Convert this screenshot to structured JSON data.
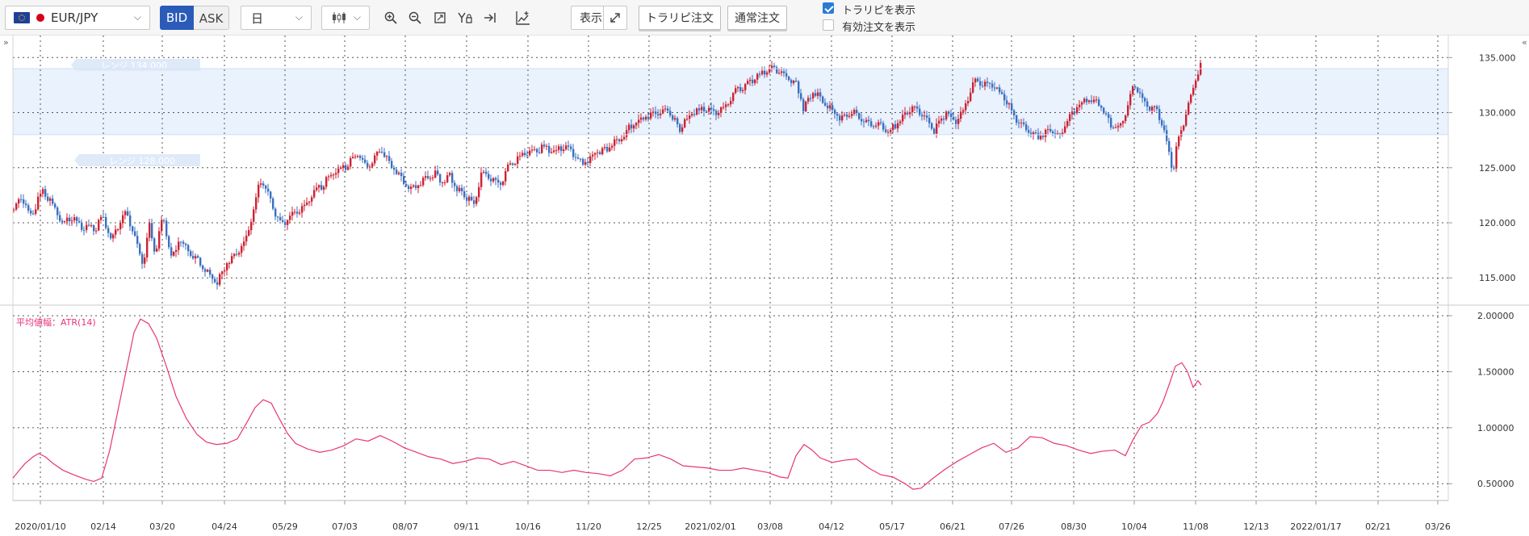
{
  "toolbar": {
    "pair": "EUR/JPY",
    "bid_label": "BID",
    "ask_label": "ASK",
    "timeframe": "日",
    "display_label": "表示",
    "trail_order_label": "トラリピ注文",
    "normal_order_label": "通常注文",
    "show_trail_label": "トラリピを表示",
    "show_trail_checked": true,
    "show_orders_label": "有効注文を表示",
    "show_orders_checked": false
  },
  "colors": {
    "up_candle": "#cc2233",
    "down_candle": "#3a6fc0",
    "range_band": "#e9f2fd",
    "atr_line": "#e8337a",
    "grid": "#555555"
  },
  "range_band": {
    "upper_label": "レンジ 134.000",
    "lower_label": "レンジ 128.000",
    "upper": 134.0,
    "lower": 128.0
  },
  "chart_data": [
    {
      "type": "candlestick",
      "title": "",
      "ylim": [
        112.6,
        137.0
      ],
      "y_ticks": [
        115.0,
        120.0,
        125.0,
        130.0,
        135.0
      ],
      "y_tick_labels": [
        "115.000",
        "120.000",
        "125.000",
        "130.000",
        "135.000"
      ],
      "x_tick_labels": [
        "2020/01/10",
        "02/14",
        "03/20",
        "04/24",
        "05/29",
        "07/03",
        "08/07",
        "09/11",
        "10/16",
        "11/20",
        "12/25",
        "2021/02/01",
        "03/08",
        "04/12",
        "05/17",
        "06/21",
        "07/26",
        "08/30",
        "10/04",
        "11/08",
        "12/13",
        "2022/01/17",
        "02/21",
        "03/26"
      ],
      "close_path": [
        [
          0,
          121.2
        ],
        [
          10,
          122.4
        ],
        [
          20,
          120.5
        ],
        [
          35,
          122.8
        ],
        [
          50,
          121.5
        ],
        [
          60,
          120.0
        ],
        [
          72,
          120.5
        ],
        [
          85,
          119.6
        ],
        [
          100,
          119.4
        ],
        [
          110,
          120.5
        ],
        [
          120,
          118.5
        ],
        [
          130,
          119.8
        ],
        [
          140,
          121.0
        ],
        [
          150,
          118.5
        ],
        [
          160,
          116.3
        ],
        [
          168,
          119.8
        ],
        [
          175,
          117.2
        ],
        [
          185,
          120.6
        ],
        [
          195,
          116.8
        ],
        [
          205,
          118.5
        ],
        [
          215,
          117.5
        ],
        [
          225,
          116.8
        ],
        [
          240,
          115.5
        ],
        [
          252,
          114.5
        ],
        [
          262,
          116.2
        ],
        [
          272,
          117.0
        ],
        [
          285,
          118.0
        ],
        [
          295,
          120.5
        ],
        [
          305,
          124.0
        ],
        [
          315,
          122.5
        ],
        [
          325,
          120.5
        ],
        [
          332,
          119.7
        ],
        [
          345,
          120.8
        ],
        [
          358,
          121.3
        ],
        [
          370,
          122.5
        ],
        [
          383,
          123.5
        ],
        [
          396,
          124.5
        ],
        [
          410,
          125.0
        ],
        [
          425,
          126.3
        ],
        [
          440,
          125.0
        ],
        [
          455,
          126.8
        ],
        [
          465,
          125.5
        ],
        [
          480,
          124.0
        ],
        [
          490,
          123.0
        ],
        [
          500,
          123.5
        ],
        [
          512,
          124.0
        ],
        [
          522,
          124.6
        ],
        [
          532,
          123.6
        ],
        [
          540,
          124.4
        ],
        [
          550,
          123.0
        ],
        [
          560,
          122.3
        ],
        [
          570,
          121.7
        ],
        [
          580,
          124.6
        ],
        [
          590,
          124.0
        ],
        [
          602,
          123.3
        ],
        [
          612,
          125.0
        ],
        [
          625,
          126.0
        ],
        [
          640,
          126.3
        ],
        [
          655,
          126.8
        ],
        [
          670,
          126.5
        ],
        [
          685,
          127.0
        ],
        [
          695,
          126.0
        ],
        [
          705,
          125.3
        ],
        [
          720,
          126.4
        ],
        [
          735,
          126.8
        ],
        [
          750,
          127.6
        ],
        [
          765,
          128.8
        ],
        [
          780,
          129.7
        ],
        [
          795,
          130.0
        ],
        [
          810,
          130.3
        ],
        [
          825,
          128.6
        ],
        [
          840,
          130.0
        ],
        [
          855,
          130.3
        ],
        [
          870,
          130.1
        ],
        [
          880,
          130.5
        ],
        [
          895,
          132.0
        ],
        [
          910,
          132.6
        ],
        [
          925,
          133.4
        ],
        [
          940,
          134.1
        ],
        [
          955,
          133.3
        ],
        [
          970,
          132.6
        ],
        [
          978,
          130.4
        ],
        [
          990,
          132.0
        ],
        [
          1000,
          131.4
        ],
        [
          1012,
          130.3
        ],
        [
          1025,
          129.5
        ],
        [
          1040,
          130.0
        ],
        [
          1055,
          129.2
        ],
        [
          1070,
          128.9
        ],
        [
          1085,
          128.3
        ],
        [
          1100,
          129.5
        ],
        [
          1115,
          130.4
        ],
        [
          1125,
          130.0
        ],
        [
          1140,
          128.3
        ],
        [
          1155,
          130.1
        ],
        [
          1165,
          128.9
        ],
        [
          1175,
          130.0
        ],
        [
          1190,
          132.8
        ],
        [
          1205,
          132.6
        ],
        [
          1215,
          132.2
        ],
        [
          1230,
          131.0
        ],
        [
          1240,
          129.5
        ],
        [
          1255,
          128.5
        ],
        [
          1270,
          127.8
        ],
        [
          1285,
          128.6
        ],
        [
          1295,
          127.8
        ],
        [
          1308,
          129.8
        ],
        [
          1320,
          130.8
        ],
        [
          1332,
          131.2
        ],
        [
          1345,
          130.9
        ],
        [
          1358,
          128.9
        ],
        [
          1370,
          128.6
        ],
        [
          1380,
          130.7
        ],
        [
          1388,
          132.8
        ],
        [
          1395,
          131.5
        ],
        [
          1405,
          130.6
        ],
        [
          1415,
          130.2
        ],
        [
          1425,
          128.4
        ],
        [
          1430,
          126.5
        ],
        [
          1436,
          124.8
        ],
        [
          1442,
          127.5
        ],
        [
          1450,
          129.3
        ],
        [
          1460,
          132.0
        ],
        [
          1466,
          133.4
        ],
        [
          1472,
          134.6
        ]
      ]
    },
    {
      "type": "line",
      "title": "平均値幅：ATR(14)",
      "ylim": [
        0.35,
        2.08
      ],
      "y_ticks": [
        0.5,
        1.0,
        1.5,
        2.0
      ],
      "y_tick_labels": [
        "0.50000",
        "1.00000",
        "1.50000",
        "2.00000"
      ],
      "series": [
        {
          "points": [
            [
              0,
              0.55
            ],
            [
              8,
              0.62
            ],
            [
              15,
              0.68
            ],
            [
              25,
              0.74
            ],
            [
              32,
              0.77
            ],
            [
              40,
              0.74
            ],
            [
              50,
              0.68
            ],
            [
              62,
              0.62
            ],
            [
              75,
              0.58
            ],
            [
              90,
              0.54
            ],
            [
              100,
              0.52
            ],
            [
              110,
              0.55
            ],
            [
              120,
              0.8
            ],
            [
              130,
              1.15
            ],
            [
              140,
              1.5
            ],
            [
              150,
              1.85
            ],
            [
              158,
              1.97
            ],
            [
              168,
              1.93
            ],
            [
              178,
              1.8
            ],
            [
              190,
              1.55
            ],
            [
              202,
              1.28
            ],
            [
              215,
              1.08
            ],
            [
              228,
              0.94
            ],
            [
              240,
              0.87
            ],
            [
              252,
              0.85
            ],
            [
              265,
              0.86
            ],
            [
              278,
              0.9
            ],
            [
              290,
              1.05
            ],
            [
              300,
              1.18
            ],
            [
              310,
              1.25
            ],
            [
              320,
              1.22
            ],
            [
              330,
              1.08
            ],
            [
              340,
              0.95
            ],
            [
              350,
              0.86
            ],
            [
              365,
              0.81
            ],
            [
              380,
              0.78
            ],
            [
              395,
              0.8
            ],
            [
              410,
              0.84
            ],
            [
              425,
              0.9
            ],
            [
              440,
              0.88
            ],
            [
              455,
              0.93
            ],
            [
              470,
              0.88
            ],
            [
              485,
              0.82
            ],
            [
              500,
              0.78
            ],
            [
              515,
              0.74
            ],
            [
              530,
              0.72
            ],
            [
              545,
              0.68
            ],
            [
              560,
              0.7
            ],
            [
              575,
              0.73
            ],
            [
              590,
              0.72
            ],
            [
              605,
              0.67
            ],
            [
              620,
              0.7
            ],
            [
              635,
              0.66
            ],
            [
              650,
              0.62
            ],
            [
              665,
              0.62
            ],
            [
              680,
              0.6
            ],
            [
              695,
              0.62
            ],
            [
              710,
              0.6
            ],
            [
              725,
              0.59
            ],
            [
              740,
              0.57
            ],
            [
              755,
              0.62
            ],
            [
              770,
              0.72
            ],
            [
              785,
              0.73
            ],
            [
              800,
              0.76
            ],
            [
              815,
              0.72
            ],
            [
              830,
              0.66
            ],
            [
              845,
              0.65
            ],
            [
              860,
              0.64
            ],
            [
              875,
              0.62
            ],
            [
              890,
              0.62
            ],
            [
              905,
              0.64
            ],
            [
              920,
              0.62
            ],
            [
              935,
              0.6
            ],
            [
              950,
              0.56
            ],
            [
              960,
              0.55
            ],
            [
              970,
              0.75
            ],
            [
              980,
              0.85
            ],
            [
              990,
              0.8
            ],
            [
              1000,
              0.73
            ],
            [
              1015,
              0.69
            ],
            [
              1030,
              0.71
            ],
            [
              1045,
              0.72
            ],
            [
              1060,
              0.64
            ],
            [
              1075,
              0.58
            ],
            [
              1090,
              0.56
            ],
            [
              1105,
              0.5
            ],
            [
              1115,
              0.45
            ],
            [
              1125,
              0.46
            ],
            [
              1140,
              0.55
            ],
            [
              1155,
              0.63
            ],
            [
              1170,
              0.7
            ],
            [
              1185,
              0.76
            ],
            [
              1200,
              0.82
            ],
            [
              1215,
              0.86
            ],
            [
              1230,
              0.78
            ],
            [
              1245,
              0.82
            ],
            [
              1260,
              0.92
            ],
            [
              1275,
              0.91
            ],
            [
              1290,
              0.86
            ],
            [
              1305,
              0.84
            ],
            [
              1320,
              0.8
            ],
            [
              1335,
              0.77
            ],
            [
              1350,
              0.79
            ],
            [
              1365,
              0.8
            ],
            [
              1378,
              0.75
            ],
            [
              1388,
              0.9
            ],
            [
              1398,
              1.02
            ],
            [
              1408,
              1.05
            ],
            [
              1418,
              1.13
            ],
            [
              1425,
              1.24
            ],
            [
              1432,
              1.38
            ],
            [
              1440,
              1.55
            ],
            [
              1448,
              1.58
            ],
            [
              1455,
              1.5
            ],
            [
              1462,
              1.36
            ],
            [
              1468,
              1.42
            ],
            [
              1472,
              1.38
            ]
          ]
        }
      ]
    }
  ]
}
